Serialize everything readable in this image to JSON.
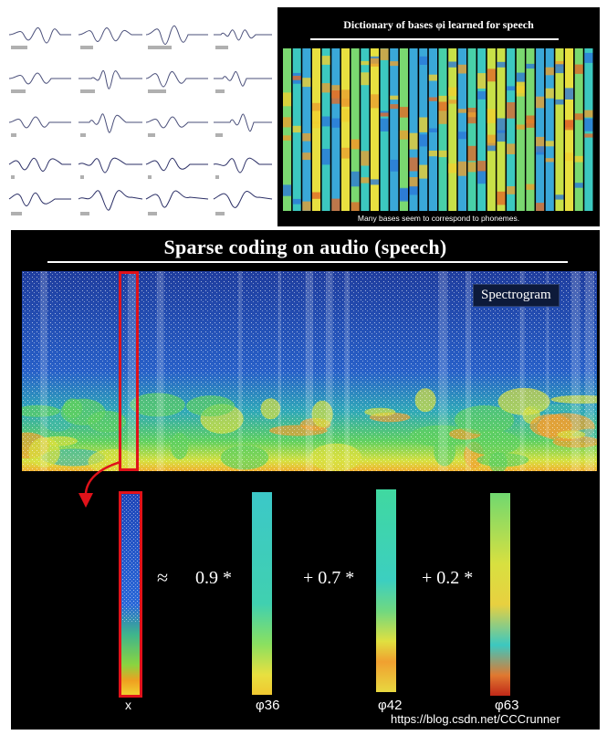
{
  "dictionary": {
    "title": "Dictionary of bases φi learned for speech",
    "caption": "Many bases seem to correspond to phonemes."
  },
  "sparse_coding": {
    "title": "Sparse coding on audio (speech)",
    "spectrogram_label": "Spectrogram",
    "approx_symbol": "≈",
    "terms": [
      {
        "coefficient": "0.9 *",
        "basis_label": "φ36"
      },
      {
        "coefficient": "+ 0.7 *",
        "basis_label": "φ42"
      },
      {
        "coefficient": "+ 0.2 *",
        "basis_label": "φ63"
      }
    ],
    "input_label": "x"
  },
  "watermark": "https://blog.csdn.net/CCCrunner",
  "colors": {
    "highlight": "#e0121a",
    "panel_bg": "#000000",
    "spec_low": "#1f3d9e",
    "spec_high": "#f0e030"
  }
}
